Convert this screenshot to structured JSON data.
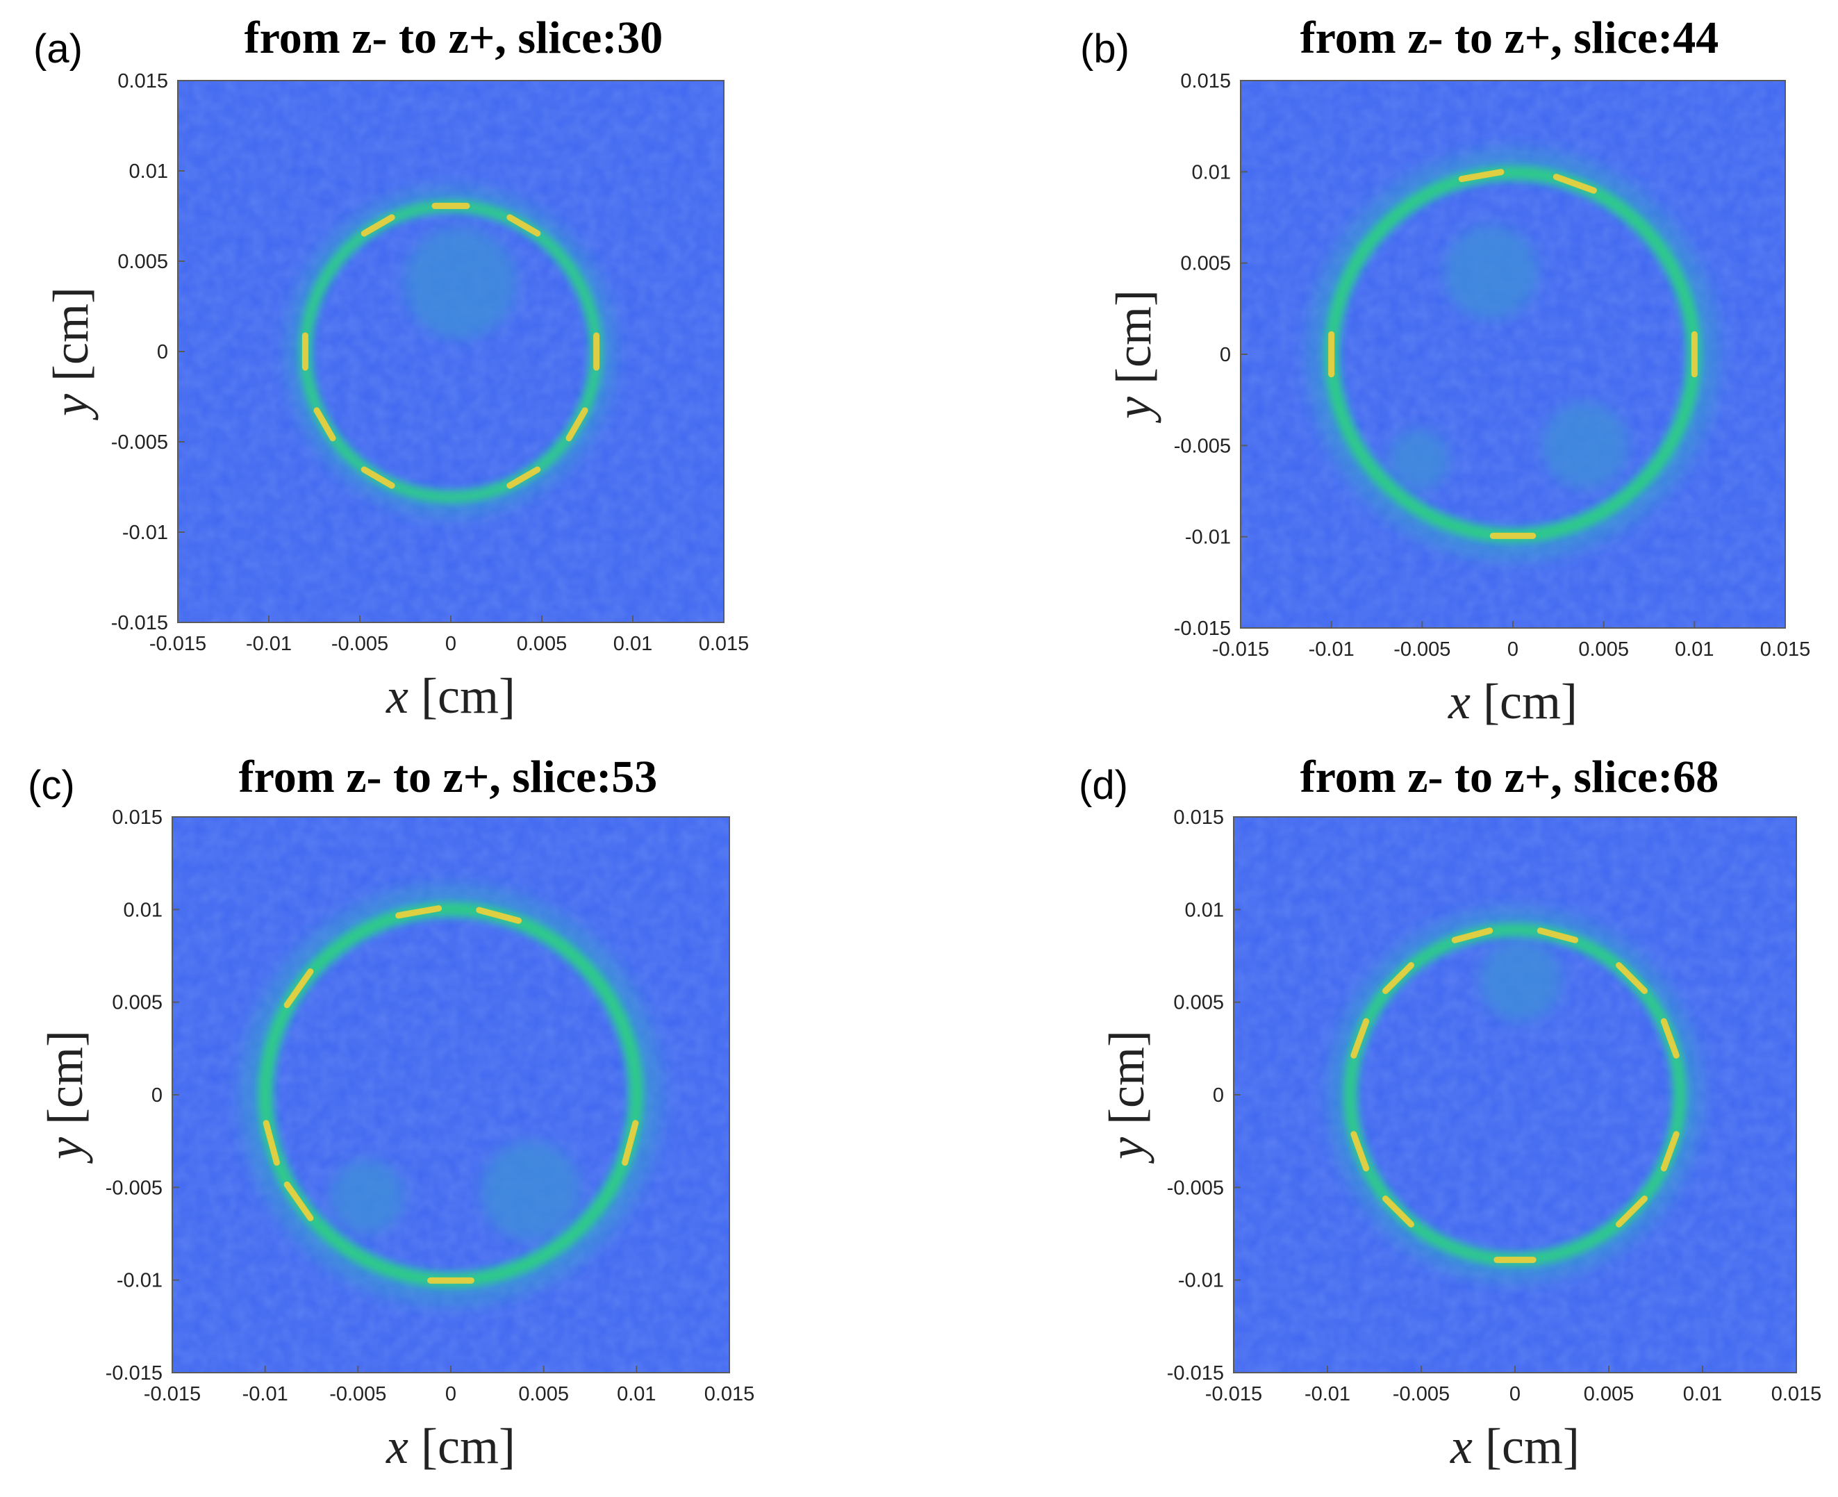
{
  "colors": {
    "background": "#3f66f0",
    "ring": "#2fd07e",
    "ring_glow": "#33a9c8",
    "hotspot": "#f2cf3b",
    "blob": "#3f8fd8"
  },
  "chart_data": [
    {
      "type": "heatmap",
      "panel": "(a)",
      "title": "from z- to z+, slice:30",
      "xlabel": {
        "var": "x",
        "unit": "[cm]"
      },
      "ylabel": {
        "var": "y",
        "unit": "[cm]"
      },
      "xlim": [
        -0.015,
        0.015
      ],
      "ylim": [
        -0.015,
        0.015
      ],
      "xticks": [
        "-0.015",
        "-0.01",
        "-0.005",
        "0",
        "0.005",
        "0.01",
        "0.015"
      ],
      "yticks": [
        "-0.015",
        "-0.01",
        "-0.005",
        "0",
        "0.005",
        "0.01",
        "0.015"
      ],
      "colormap": "parula",
      "ring": {
        "center": [
          0,
          0
        ],
        "radius": 0.008
      },
      "hotspots_deg": [
        90,
        0,
        180,
        60,
        120,
        240,
        300,
        210,
        330
      ],
      "blobs": [
        {
          "center": [
            0.0005,
            0.0038
          ],
          "radius": 0.0031
        }
      ]
    },
    {
      "type": "heatmap",
      "panel": "(b)",
      "title": "from z- to z+, slice:44",
      "xlabel": {
        "var": "x",
        "unit": "[cm]"
      },
      "ylabel": {
        "var": "y",
        "unit": "[cm]"
      },
      "xlim": [
        -0.015,
        0.015
      ],
      "ylim": [
        -0.015,
        0.015
      ],
      "xticks": [
        "-0.015",
        "-0.01",
        "-0.005",
        "0",
        "0.005",
        "0.01",
        "0.015"
      ],
      "yticks": [
        "-0.015",
        "-0.01",
        "-0.005",
        "0",
        "0.005",
        "0.01",
        "0.015"
      ],
      "colormap": "parula",
      "ring": {
        "center": [
          0,
          0
        ],
        "radius": 0.01
      },
      "hotspots_deg": [
        100,
        70,
        270,
        0,
        180
      ],
      "blobs": [
        {
          "center": [
            -0.0012,
            0.0045
          ],
          "radius": 0.0026
        },
        {
          "center": [
            0.004,
            -0.005
          ],
          "radius": 0.0024
        },
        {
          "center": [
            -0.0052,
            -0.0058
          ],
          "radius": 0.0017
        }
      ]
    },
    {
      "type": "heatmap",
      "panel": "(c)",
      "title": "from z- to z+, slice:53",
      "xlabel": {
        "var": "x",
        "unit": "[cm]"
      },
      "ylabel": {
        "var": "y",
        "unit": "[cm]"
      },
      "xlim": [
        -0.015,
        0.015
      ],
      "ylim": [
        -0.015,
        0.015
      ],
      "xticks": [
        "-0.015",
        "-0.01",
        "-0.005",
        "0",
        "0.005",
        "0.01",
        "0.015"
      ],
      "yticks": [
        "-0.015",
        "-0.01",
        "-0.005",
        "0",
        "0.005",
        "0.01",
        "0.015"
      ],
      "colormap": "parula",
      "ring": {
        "center": [
          0,
          0
        ],
        "radius": 0.01
      },
      "hotspots_deg": [
        270,
        100,
        75,
        145,
        345,
        195,
        215
      ],
      "blobs": [
        {
          "center": [
            0.0043,
            -0.0052
          ],
          "radius": 0.0027
        },
        {
          "center": [
            -0.0045,
            -0.0055
          ],
          "radius": 0.002
        }
      ]
    },
    {
      "type": "heatmap",
      "panel": "(d)",
      "title": "from z- to z+, slice:68",
      "xlabel": {
        "var": "x",
        "unit": "[cm]"
      },
      "ylabel": {
        "var": "y",
        "unit": "[cm]"
      },
      "xlim": [
        -0.015,
        0.015
      ],
      "ylim": [
        -0.015,
        0.015
      ],
      "xticks": [
        "-0.015",
        "-0.01",
        "-0.005",
        "0",
        "0.005",
        "0.01",
        "0.015"
      ],
      "yticks": [
        "-0.015",
        "-0.01",
        "-0.005",
        "0",
        "0.005",
        "0.01",
        "0.015"
      ],
      "colormap": "parula",
      "ring": {
        "center": [
          0,
          0
        ],
        "radius": 0.0088
      },
      "hotspots_deg": [
        270,
        105,
        75,
        160,
        200,
        20,
        340,
        135,
        45,
        225,
        315
      ],
      "blobs": [
        {
          "center": [
            0.0003,
            0.0062
          ],
          "radius": 0.0022
        }
      ]
    }
  ]
}
